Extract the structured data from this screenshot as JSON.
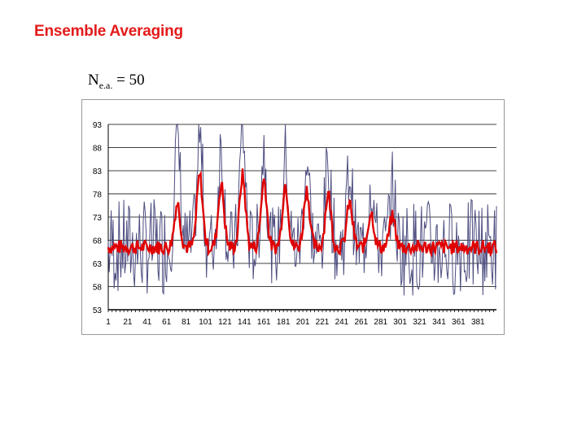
{
  "page": {
    "title": "Ensemble Averaging",
    "formula_main": "N",
    "formula_sub": "e.a.",
    "formula_rest": " = 50"
  },
  "chart_data": {
    "type": "line",
    "title": "",
    "xlabel": "",
    "ylabel": "",
    "ylim": [
      53,
      93
    ],
    "yticks": [
      93,
      88,
      83,
      78,
      73,
      68,
      63,
      58,
      53
    ],
    "xlim": [
      1,
      400
    ],
    "xticks": [
      1,
      21,
      41,
      61,
      81,
      101,
      121,
      141,
      161,
      181,
      201,
      221,
      241,
      261,
      281,
      301,
      321,
      341,
      361,
      381
    ],
    "grid": "horizontal",
    "legend": "none",
    "colors": {
      "raw": "#4d4d80",
      "averaged": "#e00000",
      "grid": "#000000"
    },
    "series_note_peaks": [
      {
        "x": 72,
        "avg": 76,
        "raw": 90
      },
      {
        "x": 95,
        "avg": 82,
        "raw": 90
      },
      {
        "x": 117,
        "avg": 80,
        "raw": 88
      },
      {
        "x": 139,
        "avg": 82,
        "raw": 91
      },
      {
        "x": 161,
        "avg": 81,
        "raw": 88
      },
      {
        "x": 183,
        "avg": 80,
        "raw": 86
      },
      {
        "x": 205,
        "avg": 79,
        "raw": 85
      },
      {
        "x": 227,
        "avg": 78,
        "raw": 84
      },
      {
        "x": 249,
        "avg": 76,
        "raw": 83
      },
      {
        "x": 271,
        "avg": 74,
        "raw": 81
      },
      {
        "x": 293,
        "avg": 73,
        "raw": 79
      }
    ],
    "baseline": {
      "avg": 66.5,
      "raw_min": 56,
      "raw_max": 77
    }
  }
}
